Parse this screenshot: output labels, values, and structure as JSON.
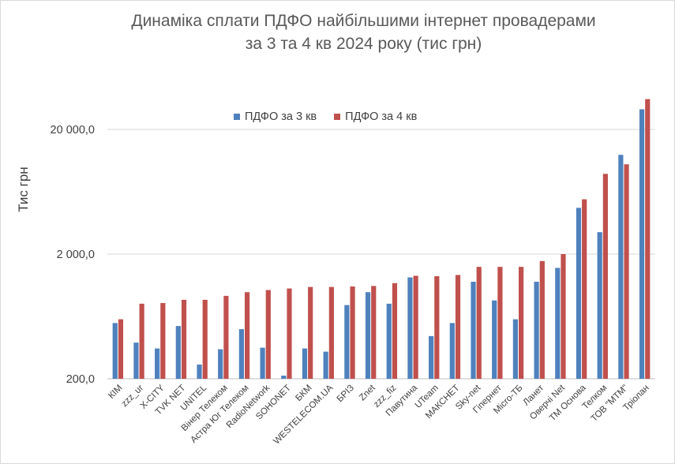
{
  "chart_data": {
    "type": "bar",
    "title_line1": "Динаміка сплати ПДФО найбільшими інтернет провадерами",
    "title_line2": "за 3 та 4 кв 2024 року (тис грн)",
    "ylabel": "Тис грн",
    "yscale": "log",
    "ylim": [
      200,
      40000
    ],
    "yticks": [
      {
        "value": 200,
        "label": "200,0"
      },
      {
        "value": 2000,
        "label": "2 000,0"
      },
      {
        "value": 20000,
        "label": "20 000,0"
      }
    ],
    "categories": [
      "КІМ",
      "zzz_ur",
      "X-CITY",
      "TVK NET",
      "UNITEL",
      "Вінер Телеком",
      "Астра Юг Телеком",
      "RadioNetwork",
      "SOHONET",
      "БКМ",
      "WESTELECOM.UA",
      "БРІЗ",
      "Znet",
      "zzz_fiz",
      "Павутина",
      "UTeam",
      "МАКСНЕТ",
      "Sky-net",
      "Гіпернет",
      "Micro-ТБ",
      "Ланет",
      "Оверчі Net",
      "ТМ Основа",
      "Телком",
      "ТОВ \"МТМ\"",
      "Тріолан"
    ],
    "series": [
      {
        "name": "ПДФО за 3 кв",
        "color": "#4f81bd",
        "values": [
          560,
          390,
          350,
          530,
          260,
          345,
          500,
          355,
          212,
          350,
          330,
          780,
          990,
          800,
          1300,
          440,
          560,
          1200,
          850,
          600,
          1200,
          1550,
          4700,
          3000,
          12500,
          29000
        ]
      },
      {
        "name": "ПДФО за 4 кв",
        "color": "#c0504d",
        "values": [
          600,
          800,
          810,
          860,
          860,
          925,
          990,
          1030,
          1060,
          1090,
          1090,
          1100,
          1110,
          1170,
          1340,
          1330,
          1360,
          1580,
          1580,
          1580,
          1760,
          2000,
          5500,
          8800,
          10500,
          35000
        ]
      }
    ]
  }
}
